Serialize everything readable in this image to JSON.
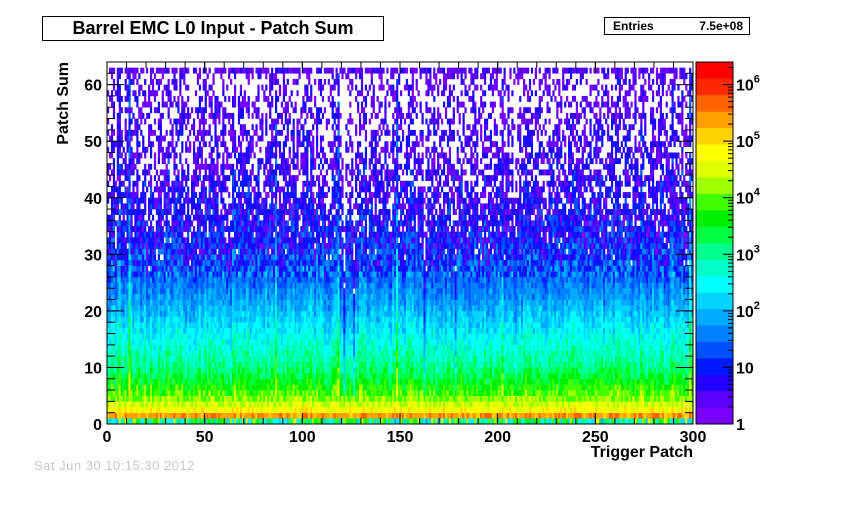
{
  "header": {
    "title": "Barrel EMC L0 Input - Patch Sum",
    "stats_label": "Entries",
    "stats_value": "7.5e+08"
  },
  "footer": {
    "date": "Sat Jun 30 10:15:30 2012"
  },
  "chart_data": {
    "type": "heatmap",
    "title": "Barrel EMC L0 Input - Patch Sum",
    "xlabel": "Trigger Patch",
    "ylabel": "Patch Sum",
    "xlim": [
      0,
      300
    ],
    "ylim": [
      0,
      64
    ],
    "x_ticks": [
      0,
      50,
      100,
      150,
      200,
      250,
      300
    ],
    "y_ticks": [
      0,
      10,
      20,
      30,
      40,
      50,
      60
    ],
    "z_scale": "log",
    "zlim": [
      1,
      2500000
    ],
    "z_ticks": [
      {
        "value": 1,
        "base": "1",
        "exp": ""
      },
      {
        "value": 10,
        "base": "10",
        "exp": ""
      },
      {
        "value": 100,
        "base": "10",
        "exp": "2"
      },
      {
        "value": 1000,
        "base": "10",
        "exp": "3"
      },
      {
        "value": 10000,
        "base": "10",
        "exp": "4"
      },
      {
        "value": 100000,
        "base": "10",
        "exp": "5"
      },
      {
        "value": 1000000,
        "base": "10",
        "exp": "6"
      }
    ],
    "nbins_x": 300,
    "nbins_y": 64,
    "palette": [
      "#7a00ff",
      "#5a00ff",
      "#2200ff",
      "#0018ff",
      "#0050ff",
      "#0080ff",
      "#00aaff",
      "#00d4ff",
      "#00ffff",
      "#00ffc8",
      "#00ff8c",
      "#00ff40",
      "#00f000",
      "#40ff00",
      "#a0ff00",
      "#e0ff00",
      "#ffff00",
      "#ffd200",
      "#ffa000",
      "#ff6400",
      "#ff2800",
      "#ff0000"
    ],
    "profile": {
      "peak_bin": 1,
      "peak_log_counts": 5.9,
      "shoulder": [
        {
          "y": 2,
          "log_counts": 4.9
        },
        {
          "y": 5,
          "log_counts": 4.0
        },
        {
          "y": 10,
          "log_counts": 3.1
        },
        {
          "y": 20,
          "log_counts": 2.0
        },
        {
          "y": 30,
          "log_counts": 1.0
        },
        {
          "y": 40,
          "log_counts": 0.5
        },
        {
          "y": 50,
          "log_counts": 0.2
        },
        {
          "y": 60,
          "log_counts": 0.05
        }
      ],
      "overflow_row_bin": 62
    }
  }
}
